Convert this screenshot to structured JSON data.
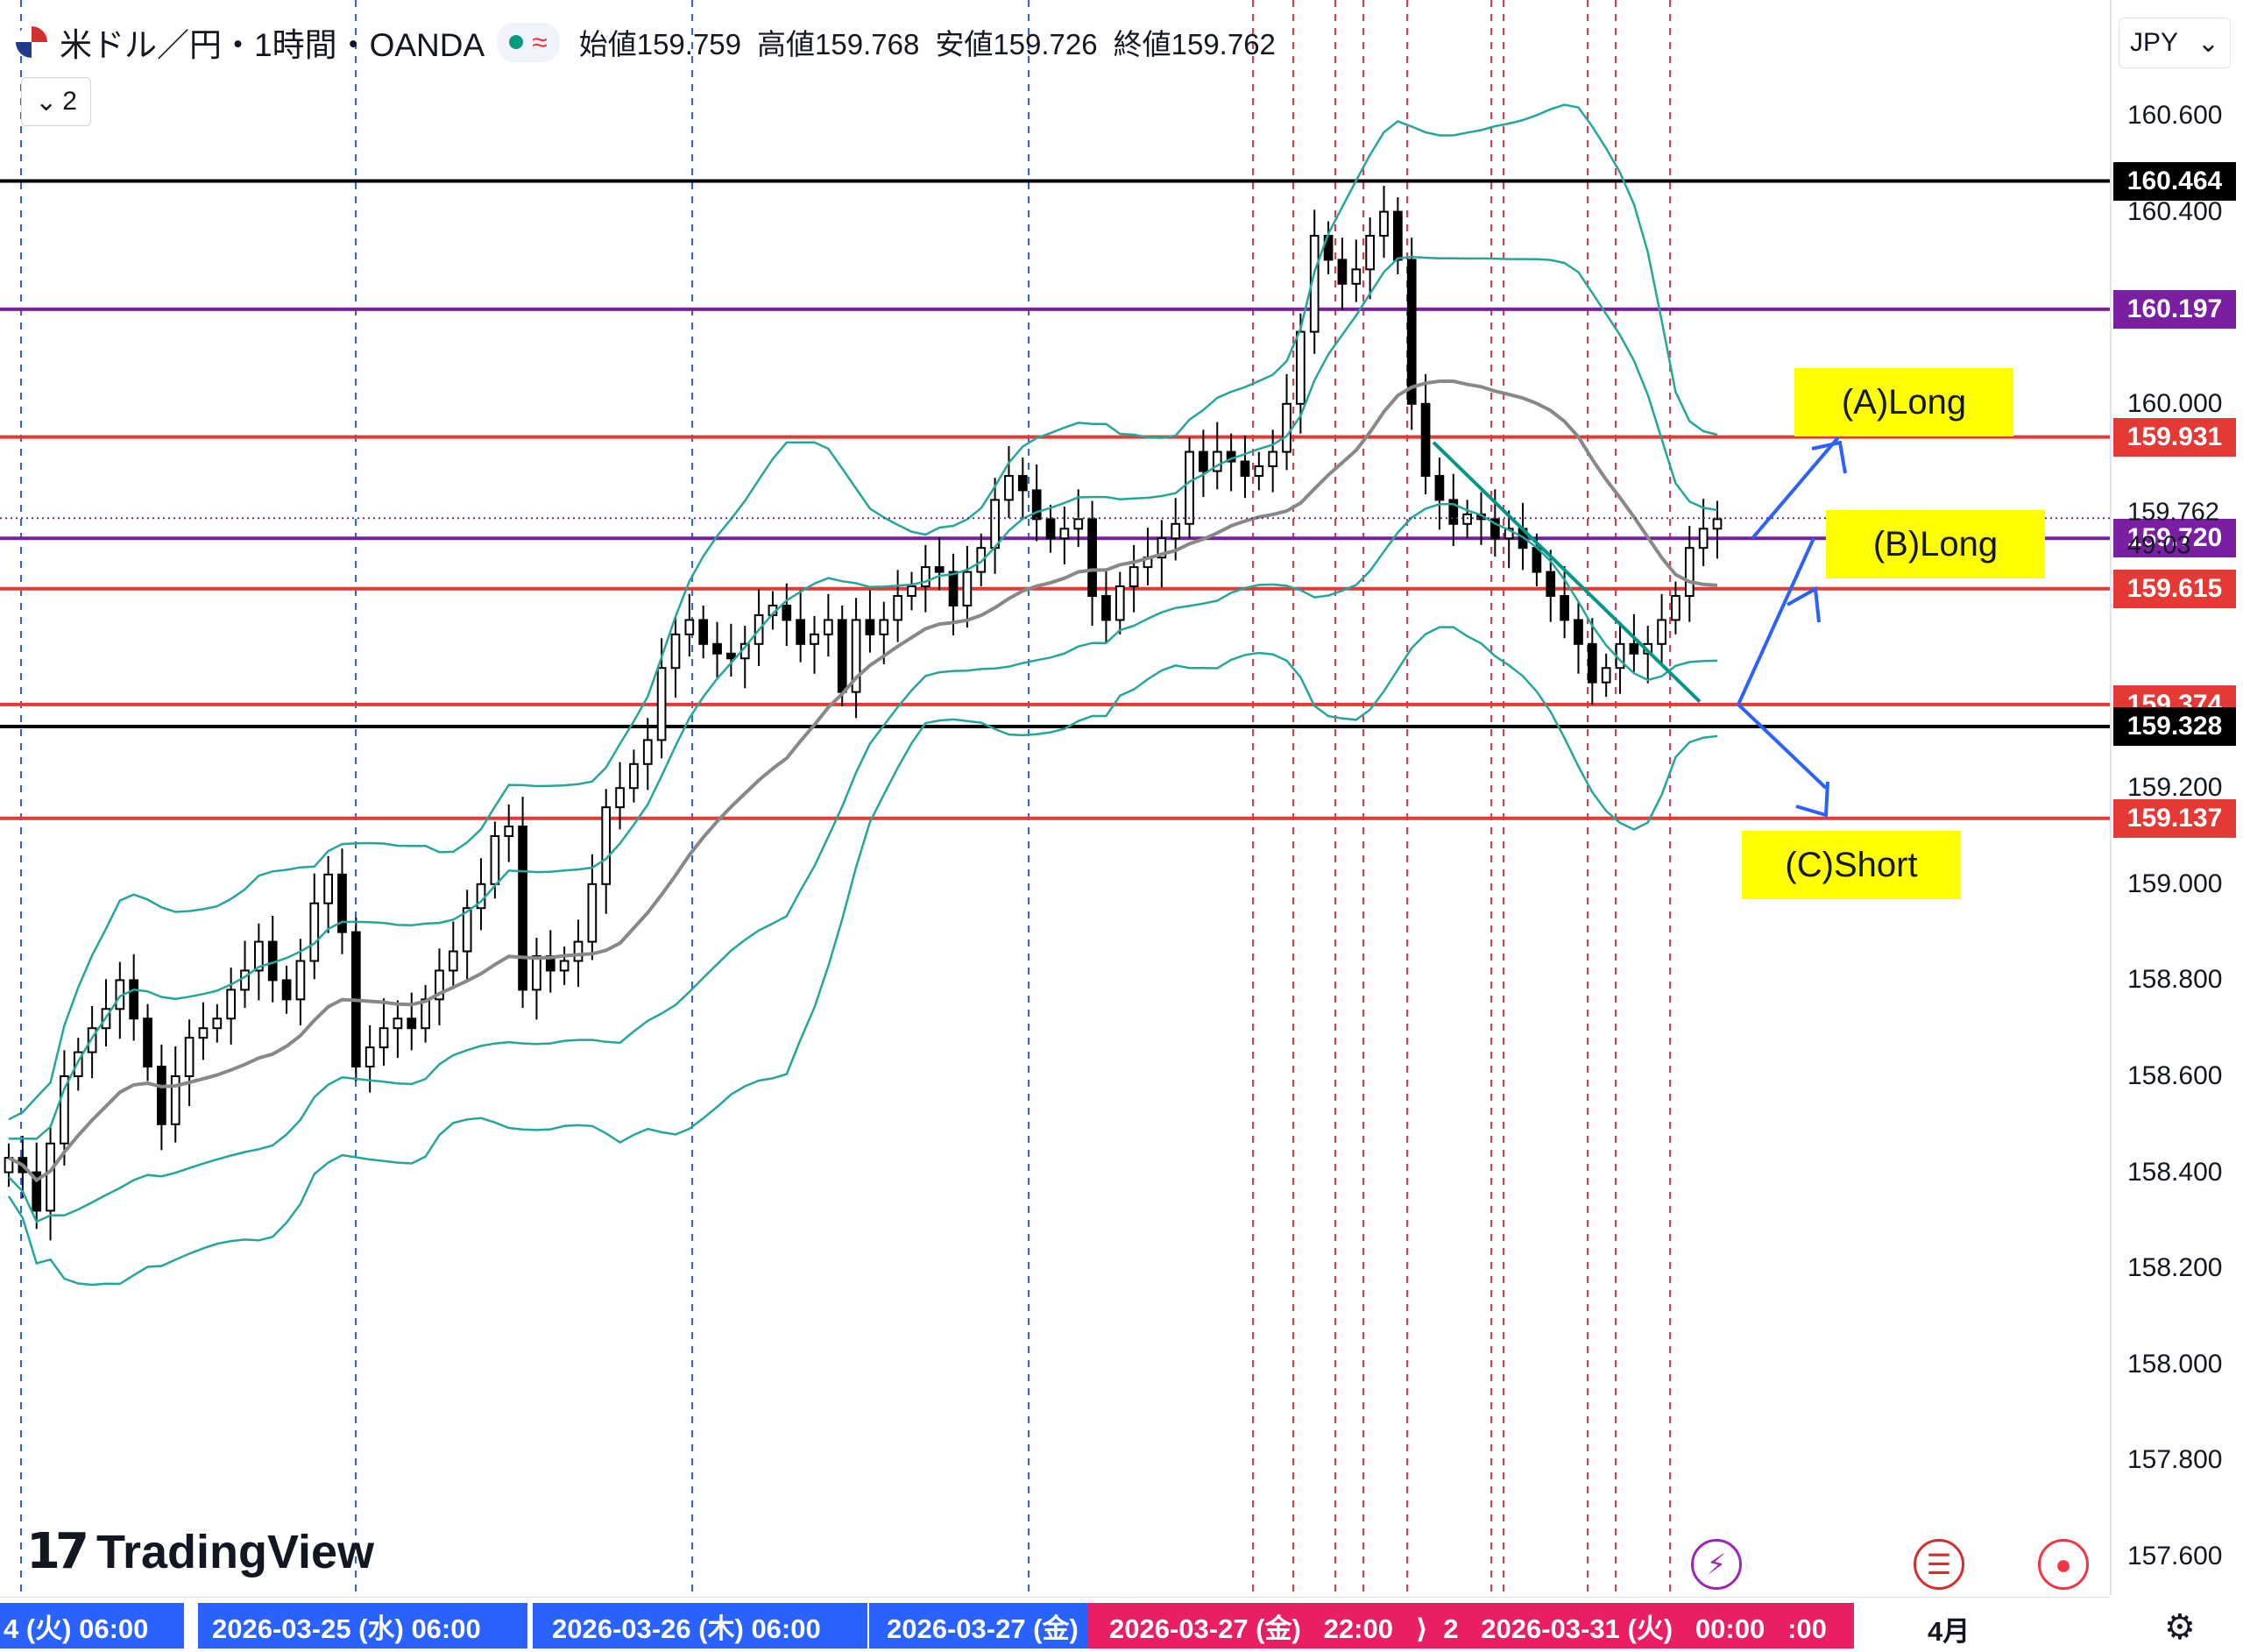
{
  "header": {
    "symbol_title": "米ドル／円・1時間・OANDA",
    "ohlc": [
      {
        "label": "始値",
        "value": "159.759"
      },
      {
        "label": "高値",
        "value": "159.768"
      },
      {
        "label": "安値",
        "value": "159.726"
      },
      {
        "label": "終値",
        "value": "159.762"
      }
    ],
    "indicator_toggle": "2",
    "currency": "JPY"
  },
  "chart_data": {
    "type": "candlestick",
    "title": "米ドル／円・1時間・OANDA",
    "ylim": [
      157.55,
      160.7
    ],
    "yticks": [
      "160.600",
      "160.400",
      "160.000",
      "159.200",
      "159.000",
      "158.800",
      "158.600",
      "158.400",
      "158.200",
      "158.000",
      "157.800",
      "157.600"
    ],
    "price_lines": [
      {
        "price": 160.464,
        "label": "160.464",
        "color": "#000000"
      },
      {
        "price": 160.197,
        "label": "160.197",
        "color": "#7b1fa2"
      },
      {
        "price": 159.931,
        "label": "159.931",
        "color": "#e53935"
      },
      {
        "price": 159.72,
        "label": "159.720",
        "color": "#7b1fa2"
      },
      {
        "price": 159.615,
        "label": "159.615",
        "color": "#e53935"
      },
      {
        "price": 159.374,
        "label": "159.374",
        "color": "#e53935"
      },
      {
        "price": 159.328,
        "label": "159.328",
        "color": "#000000"
      },
      {
        "price": 159.137,
        "label": "159.137",
        "color": "#e53935"
      }
    ],
    "last_price": {
      "value": "159.762",
      "countdown": "49:03"
    },
    "closes": [
      158.43,
      158.4,
      158.32,
      158.46,
      158.6,
      158.65,
      158.7,
      158.74,
      158.8,
      158.72,
      158.62,
      158.5,
      158.6,
      158.68,
      158.7,
      158.72,
      158.78,
      158.82,
      158.88,
      158.8,
      158.76,
      158.84,
      158.96,
      159.02,
      158.9,
      158.62,
      158.66,
      158.7,
      158.72,
      158.7,
      158.76,
      158.82,
      158.86,
      158.95,
      159.0,
      159.1,
      159.12,
      158.78,
      158.85,
      158.82,
      158.84,
      158.88,
      159.0,
      159.16,
      159.2,
      159.25,
      159.3,
      159.45,
      159.52,
      159.55,
      159.5,
      159.48,
      159.47,
      159.5,
      159.56,
      159.58,
      159.55,
      159.5,
      159.52,
      159.55,
      159.4,
      159.55,
      159.52,
      159.55,
      159.6,
      159.62,
      159.66,
      159.65,
      159.58,
      159.65,
      159.7,
      159.8,
      159.85,
      159.82,
      159.76,
      159.72,
      159.74,
      159.76,
      159.6,
      159.55,
      159.62,
      159.66,
      159.68,
      159.72,
      159.75,
      159.9,
      159.86,
      159.9,
      159.88,
      159.85,
      159.87,
      159.9,
      160.0,
      160.15,
      160.35,
      160.3,
      160.25,
      160.28,
      160.35,
      160.4,
      160.3,
      160.0,
      159.85,
      159.8,
      159.75,
      159.77,
      159.76,
      159.72,
      159.74,
      159.7,
      159.65,
      159.6,
      159.55,
      159.5,
      159.42,
      159.45,
      159.5,
      159.48,
      159.5,
      159.55,
      159.6,
      159.7,
      159.74,
      159.76
    ],
    "annotations": [
      "(A)Long",
      "(B)Long",
      "(C)Short"
    ],
    "x_labels": [
      {
        "text": "4 (火)   06:00",
        "color": "#2962ff"
      },
      {
        "text": "2026-03-25 (水)   06:00",
        "color": "#2962ff"
      },
      {
        "text": "2026-03-26 (木)   06:00",
        "color": "#2962ff"
      },
      {
        "text": "2026-03-27 (金)",
        "color": "#2962ff"
      },
      {
        "text": "2026-03-27 (金)   22:00   ⟩  2   2026-03-31 (火)   00:00   :00",
        "color": "#e91e63"
      }
    ],
    "month_label": "4月",
    "colors": {
      "up": "#ffffff",
      "down": "#000000",
      "bollinger": "#26a69a",
      "middle": "#888888",
      "trend": "#009688",
      "arrows": "#2962ff"
    }
  },
  "watermark": "TradingView"
}
